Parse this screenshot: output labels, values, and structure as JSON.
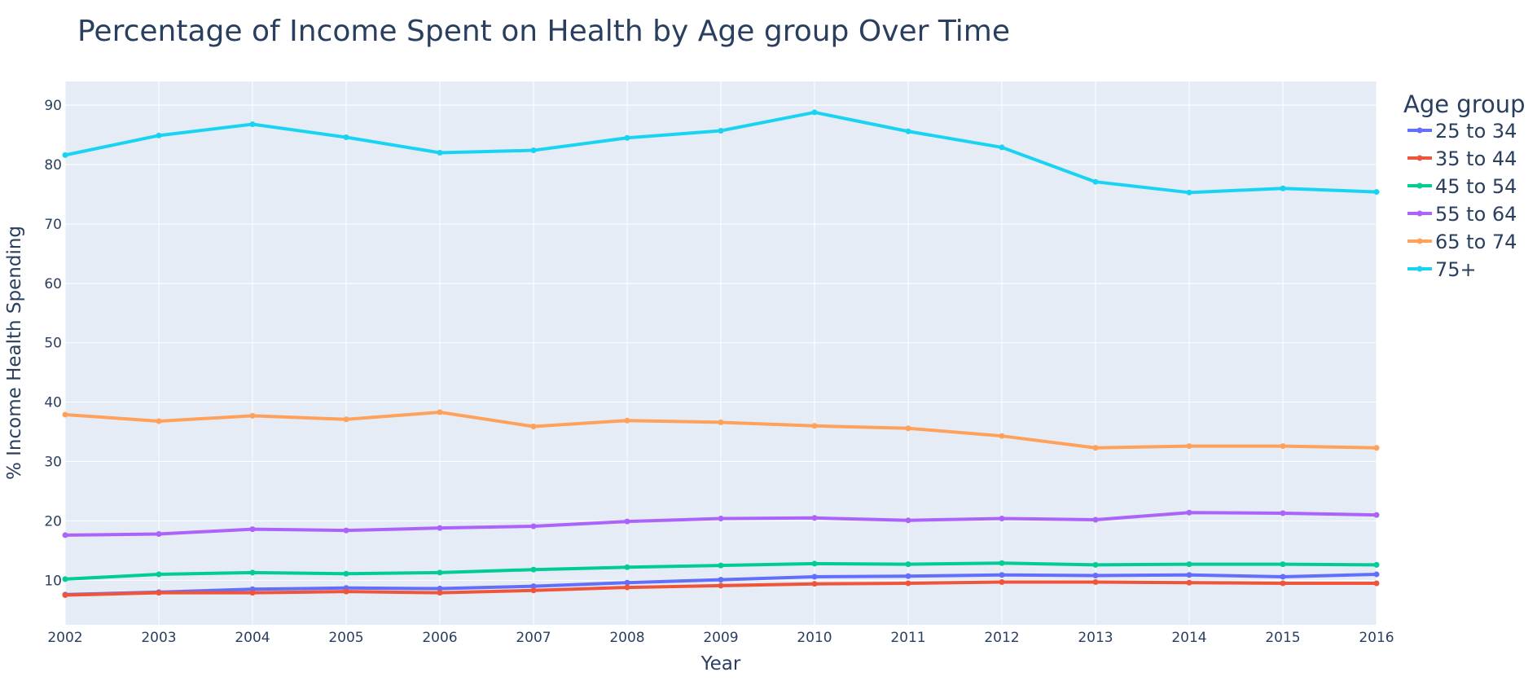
{
  "chart_data": {
    "type": "line",
    "title": "Percentage of Income Spent on Health by Age group Over Time",
    "xlabel": "Year",
    "ylabel": "% Income Health Spending",
    "x": [
      2002,
      2003,
      2004,
      2005,
      2006,
      2007,
      2008,
      2009,
      2010,
      2011,
      2012,
      2013,
      2014,
      2015,
      2016
    ],
    "xlim": [
      2002,
      2016
    ],
    "ylim": [
      2.5,
      94
    ],
    "yticks": [
      10,
      20,
      30,
      40,
      50,
      60,
      70,
      80,
      90
    ],
    "grid": true,
    "legend": {
      "title": "Age group",
      "placement": "right"
    },
    "series": [
      {
        "name": "25 to 34",
        "color": "#636efa",
        "values": [
          7.6,
          8.0,
          8.5,
          8.7,
          8.6,
          9.0,
          9.6,
          10.1,
          10.6,
          10.7,
          10.9,
          10.8,
          10.9,
          10.6,
          11.0
        ]
      },
      {
        "name": "35 to 44",
        "color": "#ef553b",
        "values": [
          7.5,
          7.9,
          7.9,
          8.1,
          7.9,
          8.3,
          8.8,
          9.1,
          9.4,
          9.5,
          9.7,
          9.7,
          9.6,
          9.5,
          9.5
        ]
      },
      {
        "name": "45 to 54",
        "color": "#00cc96",
        "values": [
          10.2,
          11.0,
          11.3,
          11.1,
          11.3,
          11.8,
          12.2,
          12.5,
          12.8,
          12.7,
          12.9,
          12.6,
          12.7,
          12.7,
          12.6
        ]
      },
      {
        "name": "55 to 64",
        "color": "#ab63fa",
        "values": [
          17.6,
          17.8,
          18.6,
          18.4,
          18.8,
          19.1,
          19.9,
          20.4,
          20.5,
          20.1,
          20.4,
          20.2,
          21.4,
          21.3,
          21.0
        ]
      },
      {
        "name": "65 to 74",
        "color": "#ffa15a",
        "values": [
          37.9,
          36.8,
          37.7,
          37.1,
          38.3,
          35.9,
          36.9,
          36.6,
          36.0,
          35.6,
          34.3,
          32.3,
          32.6,
          32.6,
          32.3
        ]
      },
      {
        "name": "75+",
        "color": "#19d3f3",
        "values": [
          81.6,
          84.9,
          86.8,
          84.6,
          82.0,
          82.4,
          84.5,
          85.7,
          88.8,
          85.6,
          82.9,
          77.1,
          75.3,
          76.0,
          75.4
        ]
      }
    ]
  }
}
